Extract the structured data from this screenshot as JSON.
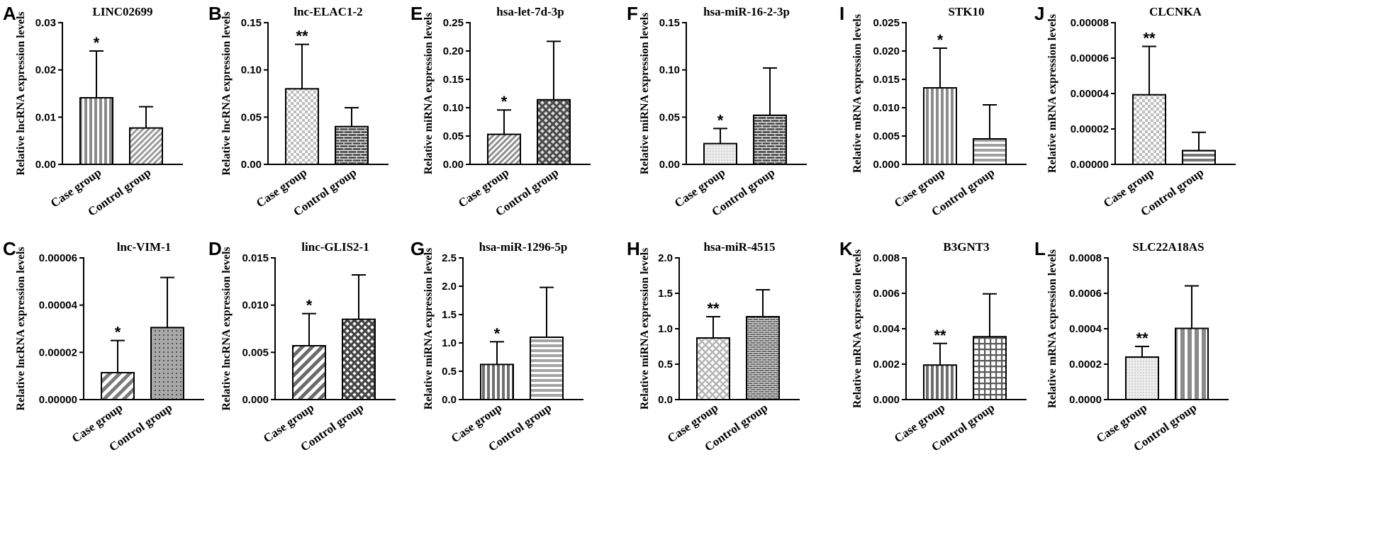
{
  "chart_data": [
    {
      "id": "A",
      "type": "bar",
      "title": "LINC02699",
      "ylabel": "Relative lncRNA expression levels",
      "ylim": [
        0,
        0.03
      ],
      "yticks": [
        "0.00",
        "0.01",
        "0.02",
        "0.03"
      ],
      "categories": [
        "Case group",
        "Control group"
      ],
      "values": [
        0.0141,
        0.0077
      ],
      "errors": [
        0.0099,
        0.0045
      ],
      "significance": [
        "*",
        ""
      ],
      "patterns": [
        "vlines",
        "diag"
      ],
      "colors": [
        "#8a8a8a",
        "#9a9a9a"
      ]
    },
    {
      "id": "B",
      "type": "bar",
      "title": "lnc-ELAC1-2",
      "ylabel": "Relative lncRNA expression levels",
      "ylim": [
        0,
        0.15
      ],
      "yticks": [
        "0.00",
        "0.05",
        "0.10",
        "0.15"
      ],
      "categories": [
        "Case group",
        "Control group"
      ],
      "values": [
        0.08,
        0.04
      ],
      "errors": [
        0.047,
        0.02
      ],
      "significance": [
        "**",
        ""
      ],
      "patterns": [
        "checker",
        "brick"
      ],
      "colors": [
        "#bdbdbd",
        "#555555"
      ]
    },
    {
      "id": "C",
      "type": "bar",
      "title": "lnc-VIM-1",
      "ylabel": "Relative lncRNA expression levels",
      "ylim": [
        0,
        6e-05
      ],
      "yticks": [
        "0.00000",
        "0.00002",
        "0.00004",
        "0.00006"
      ],
      "categories": [
        "Case group",
        "Control group"
      ],
      "values": [
        1.14e-05,
        3.05e-05
      ],
      "errors": [
        1.36e-05,
        2.12e-05
      ],
      "significance": [
        "*",
        ""
      ],
      "patterns": [
        "diag-wide",
        "dots"
      ],
      "colors": [
        "#7a7a7a",
        "#a8a8a8"
      ]
    },
    {
      "id": "D",
      "type": "bar",
      "title": "linc-GLIS2-1",
      "ylabel": "Relative lncRNA expression levels",
      "ylim": [
        0,
        0.015
      ],
      "yticks": [
        "0.000",
        "0.005",
        "0.010",
        "0.015"
      ],
      "categories": [
        "Case group",
        "Control group"
      ],
      "values": [
        0.0057,
        0.0085
      ],
      "errors": [
        0.0034,
        0.0047
      ],
      "significance": [
        "*",
        ""
      ],
      "patterns": [
        "diag-wide",
        "crosshatch"
      ],
      "colors": [
        "#6a6a6a",
        "#444444"
      ]
    },
    {
      "id": "E",
      "type": "bar",
      "title": "hsa-let-7d-3p",
      "ylabel": "Relative miRNA expression levels",
      "ylim": [
        0,
        0.25
      ],
      "yticks": [
        "0.00",
        "0.05",
        "0.10",
        "0.15",
        "0.20",
        "0.25"
      ],
      "categories": [
        "Case group",
        "Control group"
      ],
      "values": [
        0.053,
        0.114
      ],
      "errors": [
        0.043,
        0.103
      ],
      "significance": [
        "*",
        ""
      ],
      "patterns": [
        "diag",
        "checker-dark"
      ],
      "colors": [
        "#8f8f8f",
        "#4a4a4a"
      ]
    },
    {
      "id": "F",
      "type": "bar",
      "title": "hsa-miR-16-2-3p",
      "ylabel": "Relative miRNA expression levels",
      "ylim": [
        0,
        0.15
      ],
      "yticks": [
        "0.00",
        "0.05",
        "0.10",
        "0.15"
      ],
      "categories": [
        "Case group",
        "Control group"
      ],
      "values": [
        0.022,
        0.052
      ],
      "errors": [
        0.016,
        0.05
      ],
      "significance": [
        "*",
        ""
      ],
      "patterns": [
        "fine-dots",
        "brick"
      ],
      "colors": [
        "#c6c6c6",
        "#555555"
      ]
    },
    {
      "id": "G",
      "type": "bar",
      "title": "hsa-miR-1296-5p",
      "ylabel": "Relative miRNA expression levels",
      "ylim": [
        0,
        2.5
      ],
      "yticks": [
        "0.0",
        "0.5",
        "1.0",
        "1.5",
        "2.0",
        "2.5"
      ],
      "categories": [
        "Case group",
        "Control group"
      ],
      "values": [
        0.62,
        1.1
      ],
      "errors": [
        0.4,
        0.88
      ],
      "significance": [
        "*",
        ""
      ],
      "patterns": [
        "vlines",
        "hlines"
      ],
      "colors": [
        "#6f6f6f",
        "#a5a5a5"
      ]
    },
    {
      "id": "H",
      "type": "bar",
      "title": "hsa-miR-4515",
      "ylabel": "Relative miRNA expression levels",
      "ylim": [
        0,
        2.0
      ],
      "yticks": [
        "0.0",
        "0.5",
        "1.0",
        "1.5",
        "2.0"
      ],
      "categories": [
        "Case group",
        "Control group"
      ],
      "values": [
        0.87,
        1.17
      ],
      "errors": [
        0.3,
        0.38
      ],
      "significance": [
        "**",
        ""
      ],
      "patterns": [
        "crosshatch-light",
        "brick-fine"
      ],
      "colors": [
        "#b5b5b5",
        "#6a6a6a"
      ]
    },
    {
      "id": "I",
      "type": "bar",
      "title": "STK10",
      "ylabel": "Relative mRNA expression levels",
      "ylim": [
        0,
        0.025
      ],
      "yticks": [
        "0.000",
        "0.005",
        "0.010",
        "0.015",
        "0.020",
        "0.025"
      ],
      "categories": [
        "Case group",
        "Control group"
      ],
      "values": [
        0.0135,
        0.0045
      ],
      "errors": [
        0.007,
        0.006
      ],
      "significance": [
        "*",
        ""
      ],
      "patterns": [
        "vlines",
        "hlines"
      ],
      "colors": [
        "#8c8c8c",
        "#a0a0a0"
      ]
    },
    {
      "id": "J",
      "type": "bar",
      "title": "CLCNKA",
      "ylabel": "Relative mRNA expression levels",
      "ylim": [
        0,
        8e-05
      ],
      "yticks": [
        "0.00000",
        "0.00002",
        "0.00004",
        "0.00006",
        "0.00008"
      ],
      "categories": [
        "Case group",
        "Control group"
      ],
      "values": [
        3.93e-05,
        7.8e-06
      ],
      "errors": [
        2.73e-05,
        1.03e-05
      ],
      "significance": [
        "**",
        ""
      ],
      "patterns": [
        "checker",
        "hlines"
      ],
      "colors": [
        "#bdbdbd",
        "#777777"
      ]
    },
    {
      "id": "K",
      "type": "bar",
      "title": "B3GNT3",
      "ylabel": "Relative mRNA expression levels",
      "ylim": [
        0,
        0.008
      ],
      "yticks": [
        "0.000",
        "0.002",
        "0.004",
        "0.006",
        "0.008"
      ],
      "categories": [
        "Case group",
        "Control group"
      ],
      "values": [
        0.00195,
        0.00355
      ],
      "errors": [
        0.00122,
        0.00242
      ],
      "significance": [
        "**",
        ""
      ],
      "patterns": [
        "vlines",
        "grid"
      ],
      "colors": [
        "#6f6f6f",
        "#5a5a5a"
      ]
    },
    {
      "id": "L",
      "type": "bar",
      "title": "SLC22A18AS",
      "ylabel": "Relative mRNA expression levels",
      "ylim": [
        0,
        0.0008
      ],
      "yticks": [
        "0.0000",
        "0.0002",
        "0.0004",
        "0.0006",
        "0.0008"
      ],
      "categories": [
        "Case group",
        "Control group"
      ],
      "values": [
        0.00024,
        0.000402
      ],
      "errors": [
        6e-05,
        0.00024
      ],
      "significance": [
        "**",
        ""
      ],
      "patterns": [
        "fine-dots",
        "vlines-wide"
      ],
      "colors": [
        "#c4c4c4",
        "#8a8a8a"
      ]
    }
  ]
}
